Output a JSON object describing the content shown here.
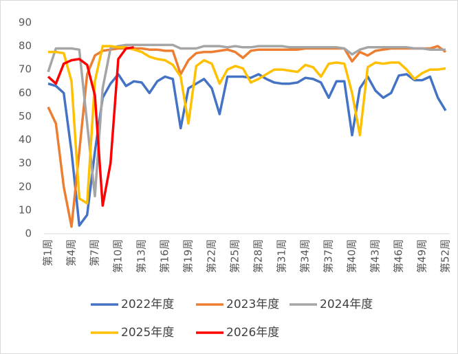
{
  "chart_data": {
    "type": "line",
    "categories": [
      "第1周",
      null,
      null,
      "第4周",
      null,
      null,
      "第7周",
      null,
      null,
      "第10周",
      null,
      null,
      "第13周",
      null,
      null,
      "第16周",
      null,
      null,
      "第19周",
      null,
      null,
      "第22周",
      null,
      null,
      "第25周",
      null,
      null,
      "第28周",
      null,
      null,
      "第31周",
      null,
      null,
      "第34周",
      null,
      null,
      "第37周",
      null,
      null,
      "第40周",
      null,
      null,
      "第43周",
      null,
      null,
      "第46周",
      null,
      null,
      "第49周",
      null,
      null,
      "第52周"
    ],
    "ylim": [
      0,
      90
    ],
    "yticks": [
      0,
      10,
      20,
      30,
      40,
      50,
      60,
      70,
      80,
      90
    ],
    "series": [
      {
        "name": "2022年度",
        "color": "#4472c4",
        "values": [
          64,
          63,
          60,
          35,
          3.5,
          8,
          35,
          58,
          64,
          68,
          63,
          65,
          64.5,
          60,
          65,
          67,
          66,
          45,
          62,
          64,
          66,
          62,
          51,
          67,
          67,
          67,
          66.5,
          68,
          66,
          64.5,
          64,
          64,
          64.5,
          66.5,
          66,
          64.5,
          58,
          65,
          65,
          42,
          62,
          67,
          61,
          58,
          60,
          67.5,
          68,
          65.5,
          65.5,
          67,
          58,
          52.5
        ]
      },
      {
        "name": "2023年度",
        "color": "#ed7d31",
        "values": [
          54,
          47,
          20,
          3,
          35,
          68,
          76,
          78,
          78.5,
          79,
          79,
          79,
          79,
          78.5,
          78.5,
          78,
          78,
          68,
          74,
          77,
          77.5,
          77.5,
          78,
          78.5,
          77.5,
          75,
          78,
          78.5,
          78.5,
          78.5,
          78.5,
          78.5,
          78.5,
          79,
          79,
          79,
          79,
          79,
          79,
          73.5,
          77.5,
          76,
          78,
          78.5,
          79,
          79,
          79,
          79,
          79,
          79,
          80,
          77.5
        ]
      },
      {
        "name": "2024年度",
        "color": "#a5a5a5",
        "values": [
          69,
          79,
          79,
          79,
          78.5,
          47,
          16,
          62,
          79,
          80,
          80.5,
          80.5,
          80.5,
          80.5,
          80.5,
          80.5,
          80.5,
          79,
          79,
          79,
          80,
          80,
          80,
          79.5,
          80,
          79.5,
          79.5,
          80,
          80,
          80,
          80,
          79.5,
          79.5,
          79.5,
          79.5,
          79.5,
          79.5,
          79.5,
          79,
          76.5,
          78.5,
          79.5,
          79.5,
          79.5,
          79.5,
          79.5,
          79.5,
          79,
          79,
          78.5,
          78.5,
          78.5
        ]
      },
      {
        "name": "2025年度",
        "color": "#ffc000",
        "values": [
          77.5,
          77.5,
          77,
          65,
          15,
          13,
          65,
          80,
          80,
          79.5,
          79.5,
          78.5,
          77.5,
          75.5,
          74.5,
          74,
          72,
          67,
          47,
          71.5,
          74,
          72.5,
          64,
          70,
          71.5,
          70.5,
          64.5,
          66,
          68,
          70,
          70,
          69.5,
          69,
          72,
          71,
          67,
          72.5,
          73,
          72.5,
          60,
          42,
          71,
          73,
          72.5,
          73,
          73,
          70,
          66,
          68.5,
          70,
          70,
          70.5
        ]
      },
      {
        "name": "2026年度",
        "color": "#ff0000",
        "values": [
          67,
          64,
          72.5,
          74,
          74.5,
          72,
          59,
          12,
          30,
          74.5,
          79,
          79.5,
          null,
          null,
          null,
          null,
          null,
          null,
          null,
          null,
          null,
          null,
          null,
          null,
          null,
          null,
          null,
          null,
          null,
          null,
          null,
          null,
          null,
          null,
          null,
          null,
          null,
          null,
          null,
          null,
          null,
          null,
          null,
          null,
          null,
          null,
          null,
          null,
          null,
          null,
          null,
          null
        ]
      }
    ]
  }
}
